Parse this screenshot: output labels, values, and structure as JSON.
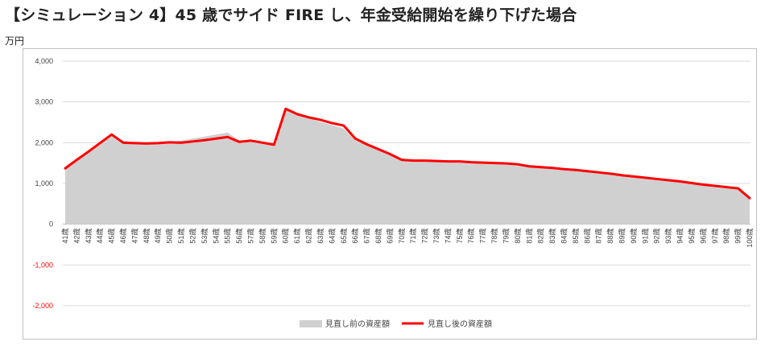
{
  "page": {
    "title": "【シミュレーション 4】45 歳でサイド FIRE し、年金受給開始を繰り下げた場合",
    "unit": "万円"
  },
  "colors": {
    "area_fill": "#d0d0d0",
    "line": "#ff0000",
    "positive_tick": "#404040",
    "negative_tick": "#ff0000",
    "grid": "#d9d9d9"
  },
  "chart_data": {
    "type": "area",
    "title": "",
    "xlabel": "",
    "ylabel": "万円",
    "ylim": [
      -2000,
      4000
    ],
    "yticks": [
      -2000,
      -1000,
      0,
      1000,
      2000,
      3000,
      4000
    ],
    "ytick_labels": [
      "-2,000",
      "-1,000",
      "0",
      "1,000",
      "2,000",
      "3,000",
      "4,000"
    ],
    "grid": true,
    "legend_position": "bottom",
    "categories": [
      "41歳",
      "42歳",
      "43歳",
      "44歳",
      "45歳",
      "46歳",
      "47歳",
      "48歳",
      "49歳",
      "50歳",
      "51歳",
      "52歳",
      "53歳",
      "54歳",
      "55歳",
      "56歳",
      "57歳",
      "58歳",
      "59歳",
      "60歳",
      "61歳",
      "62歳",
      "63歳",
      "64歳",
      "65歳",
      "66歳",
      "67歳",
      "68歳",
      "69歳",
      "70歳",
      "71歳",
      "72歳",
      "73歳",
      "74歳",
      "75歳",
      "76歳",
      "77歳",
      "78歳",
      "79歳",
      "80歳",
      "81歳",
      "82歳",
      "83歳",
      "84歳",
      "85歳",
      "86歳",
      "87歳",
      "88歳",
      "89歳",
      "90歳",
      "91歳",
      "92歳",
      "93歳",
      "94歳",
      "95歳",
      "96歳",
      "97歳",
      "98歳",
      "99歳",
      "100歳"
    ],
    "series": [
      {
        "name": "見直し前の資産額",
        "kind": "area",
        "values": [
          1370,
          1580,
          1780,
          1990,
          2200,
          2050,
          2000,
          1980,
          1980,
          2010,
          2050,
          2100,
          2150,
          2200,
          2250,
          2060,
          2020,
          1990,
          1960,
          2850,
          2690,
          2600,
          2510,
          2430,
          2350,
          2050,
          1940,
          1830,
          1710,
          1590,
          1570,
          1560,
          1560,
          1550,
          1540,
          1530,
          1510,
          1500,
          1480,
          1460,
          1440,
          1420,
          1390,
          1360,
          1330,
          1300,
          1270,
          1240,
          1210,
          1180,
          1150,
          1120,
          1090,
          1050,
          1010,
          970,
          930,
          890,
          850,
          620
        ]
      },
      {
        "name": "見直し後の資産額",
        "kind": "line",
        "values": [
          1370,
          1580,
          1780,
          1990,
          2200,
          2000,
          1990,
          1980,
          1990,
          2010,
          2000,
          2030,
          2060,
          2100,
          2140,
          2020,
          2050,
          2000,
          1950,
          2830,
          2700,
          2620,
          2560,
          2480,
          2420,
          2100,
          1960,
          1840,
          1720,
          1580,
          1560,
          1560,
          1550,
          1540,
          1540,
          1520,
          1510,
          1500,
          1490,
          1470,
          1420,
          1400,
          1380,
          1350,
          1330,
          1300,
          1270,
          1240,
          1200,
          1170,
          1140,
          1110,
          1080,
          1050,
          1010,
          970,
          940,
          910,
          880,
          640
        ]
      }
    ]
  }
}
